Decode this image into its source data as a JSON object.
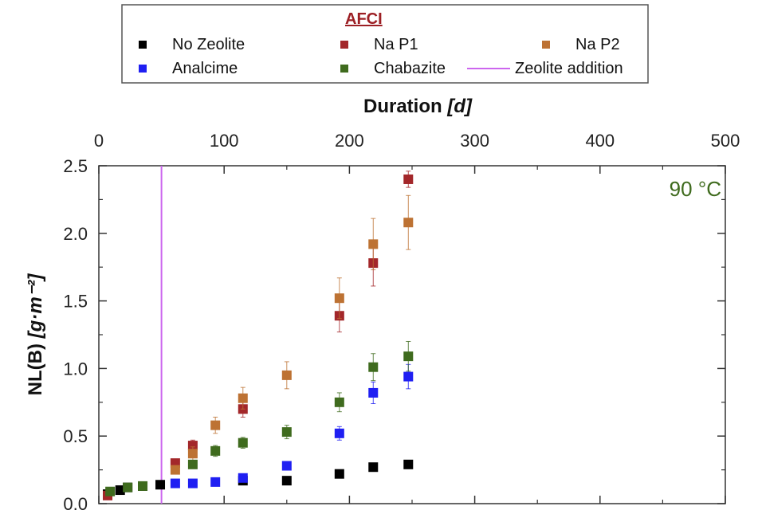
{
  "chart_data": {
    "type": "scatter",
    "legend_title": "AFCI",
    "xlabel_main": "Duration ",
    "xlabel_unit": "[d]",
    "ylabel_main": "NL(B) ",
    "ylabel_unit": "[g·m⁻²]",
    "xlim": [
      0,
      500
    ],
    "ylim": [
      0,
      2.5
    ],
    "x_axis_position": "top",
    "x_ticks": [
      "0",
      "100",
      "200",
      "300",
      "400",
      "500"
    ],
    "y_ticks": [
      "0.0",
      "0.5",
      "1.0",
      "1.5",
      "2.0",
      "2.5"
    ],
    "grid": false,
    "legend_placement": "top-center",
    "annotation": {
      "text": "90 °C",
      "color": "#3f6b1e",
      "placement": "top-right"
    },
    "zeolite_addition": {
      "name": "Zeolite addition",
      "x": 50,
      "color": "#cc66ee"
    },
    "series": [
      {
        "name": "No Zeolite",
        "color": "#000000",
        "points": [
          {
            "x": 7,
            "y": 0.07,
            "err": 0.01
          },
          {
            "x": 17,
            "y": 0.1,
            "err": 0.01
          },
          {
            "x": 23,
            "y": 0.12,
            "err": 0.01
          },
          {
            "x": 35,
            "y": 0.13,
            "err": 0.01
          },
          {
            "x": 49,
            "y": 0.14,
            "err": 0.01
          },
          {
            "x": 115,
            "y": 0.17,
            "err": 0.01
          },
          {
            "x": 150,
            "y": 0.17,
            "err": 0.01
          },
          {
            "x": 192,
            "y": 0.22,
            "err": 0.01
          },
          {
            "x": 219,
            "y": 0.27,
            "err": 0.01
          },
          {
            "x": 247,
            "y": 0.29,
            "err": 0.01
          }
        ]
      },
      {
        "name": "Na P1",
        "color": "#a3272a",
        "points": [
          {
            "x": 7,
            "y": 0.06,
            "err": 0.01
          },
          {
            "x": 61,
            "y": 0.3,
            "err": 0.03
          },
          {
            "x": 75,
            "y": 0.43,
            "err": 0.04
          },
          {
            "x": 115,
            "y": 0.7,
            "err": 0.06
          },
          {
            "x": 192,
            "y": 1.39,
            "err": 0.12
          },
          {
            "x": 219,
            "y": 1.78,
            "err": 0.17
          },
          {
            "x": 247,
            "y": 2.4,
            "err": 0.06
          }
        ]
      },
      {
        "name": "Na P2",
        "color": "#bd7233",
        "points": [
          {
            "x": 61,
            "y": 0.25,
            "err": 0.03
          },
          {
            "x": 75,
            "y": 0.37,
            "err": 0.05
          },
          {
            "x": 93,
            "y": 0.58,
            "err": 0.06
          },
          {
            "x": 115,
            "y": 0.78,
            "err": 0.08
          },
          {
            "x": 150,
            "y": 0.95,
            "err": 0.1
          },
          {
            "x": 192,
            "y": 1.52,
            "err": 0.15
          },
          {
            "x": 219,
            "y": 1.92,
            "err": 0.19
          },
          {
            "x": 247,
            "y": 2.08,
            "err": 0.2
          }
        ]
      },
      {
        "name": "Analcime",
        "color": "#1f1ff2",
        "points": [
          {
            "x": 61,
            "y": 0.15,
            "err": 0.01
          },
          {
            "x": 75,
            "y": 0.15,
            "err": 0.01
          },
          {
            "x": 93,
            "y": 0.16,
            "err": 0.01
          },
          {
            "x": 115,
            "y": 0.19,
            "err": 0.02
          },
          {
            "x": 150,
            "y": 0.28,
            "err": 0.02
          },
          {
            "x": 192,
            "y": 0.52,
            "err": 0.05
          },
          {
            "x": 219,
            "y": 0.82,
            "err": 0.08
          },
          {
            "x": 247,
            "y": 0.94,
            "err": 0.09
          }
        ]
      },
      {
        "name": "Chabazite",
        "color": "#3f6b1e",
        "points": [
          {
            "x": 9,
            "y": 0.09,
            "err": 0.01
          },
          {
            "x": 23,
            "y": 0.12,
            "err": 0.01
          },
          {
            "x": 35,
            "y": 0.13,
            "err": 0.01
          },
          {
            "x": 75,
            "y": 0.29,
            "err": 0.03
          },
          {
            "x": 93,
            "y": 0.39,
            "err": 0.04
          },
          {
            "x": 115,
            "y": 0.45,
            "err": 0.04
          },
          {
            "x": 150,
            "y": 0.53,
            "err": 0.05
          },
          {
            "x": 192,
            "y": 0.75,
            "err": 0.07
          },
          {
            "x": 219,
            "y": 1.01,
            "err": 0.1
          },
          {
            "x": 247,
            "y": 1.09,
            "err": 0.11
          }
        ]
      }
    ]
  }
}
